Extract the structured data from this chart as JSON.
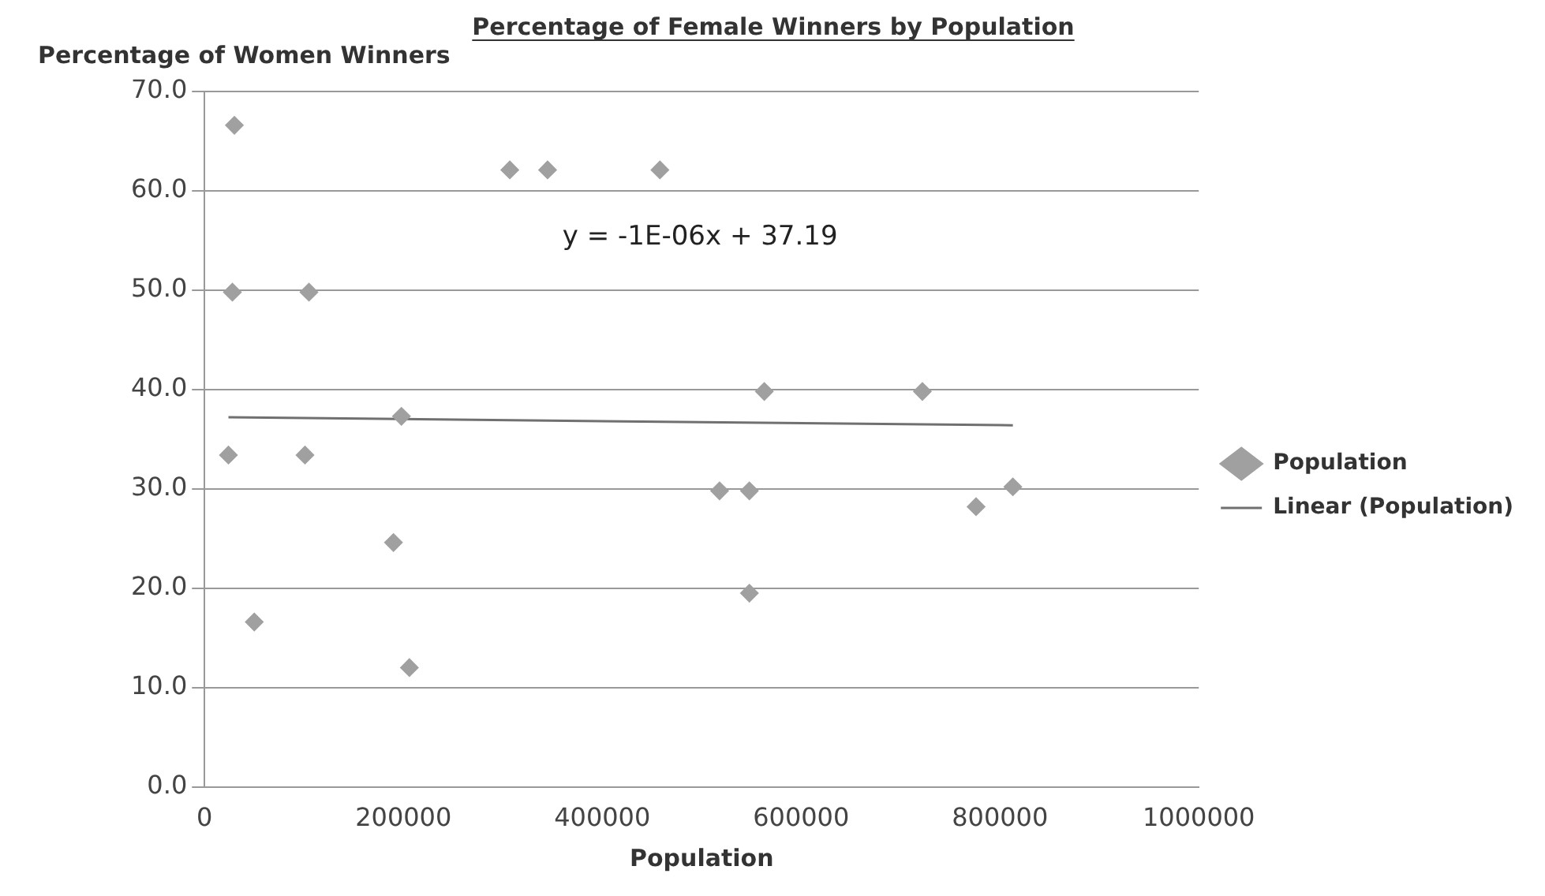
{
  "chart_data": {
    "type": "scatter",
    "title": "Percentage of Female Winners by Population",
    "ylabel": "Percentage of Women Winners",
    "xlabel": "Population",
    "series": [
      {
        "name": "Population",
        "type": "scatter",
        "color": "#a0a0a0",
        "marker": "diamond",
        "x": [
          30000,
          307000,
          345000,
          458000,
          28000,
          105000,
          198000,
          24000,
          101000,
          190000,
          50000,
          206000,
          563000,
          722000,
          518000,
          548000,
          776000,
          813000,
          548000
        ],
        "values": [
          66.6,
          62.1,
          62.1,
          62.1,
          49.8,
          49.8,
          37.3,
          33.4,
          33.4,
          24.6,
          16.6,
          12.0,
          39.8,
          39.8,
          29.8,
          29.8,
          28.2,
          30.2,
          19.5
        ]
      },
      {
        "name": "Linear (Population)",
        "type": "line",
        "color": "#707070",
        "marker": "none",
        "line_style": "solid",
        "x": [
          24000,
          813000
        ],
        "values": [
          37.2,
          36.4
        ]
      }
    ],
    "annotations": [
      "y = -1E-06x + 37.19"
    ],
    "xlim": [
      0,
      1000000
    ],
    "xticks": [
      0,
      200000,
      400000,
      600000,
      800000,
      1000000
    ],
    "ylim": [
      0,
      70
    ],
    "yticks": [
      {
        "value": 0,
        "label": "0.0"
      },
      {
        "value": 10,
        "label": "10.0"
      },
      {
        "value": 20,
        "label": "20.0"
      },
      {
        "value": 30,
        "label": "30.0"
      },
      {
        "value": 40,
        "label": "40.0"
      },
      {
        "value": 50,
        "label": "50.0"
      },
      {
        "value": 60,
        "label": "60.0"
      },
      {
        "value": 70,
        "label": "70.0"
      }
    ],
    "grid": "y",
    "legend": "right"
  }
}
